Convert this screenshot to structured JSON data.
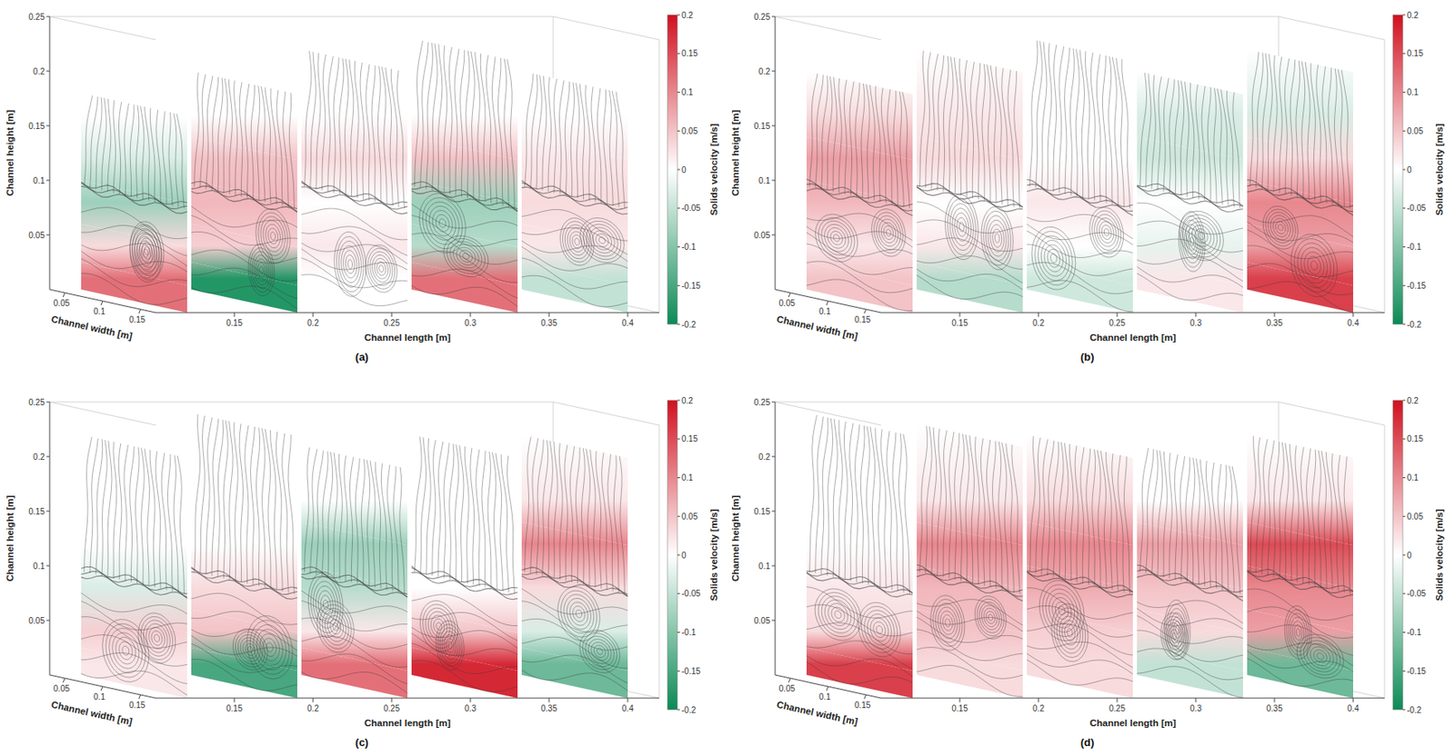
{
  "chart_data": [
    {
      "type": "slices",
      "title": "(a)",
      "height_label": "Channel height [m]",
      "width_label": "Channel width [m]",
      "length_label": "Channel length [m]",
      "height_lim": [
        0,
        0.25
      ],
      "height_ticks": [
        0.05,
        0.1,
        0.15,
        0.2,
        0.25
      ],
      "width_lim": [
        0.03,
        0.17
      ],
      "width_ticks": [
        0.05,
        0.1,
        0.15
      ],
      "length_lim": [
        0.1,
        0.42
      ],
      "length_ticks": [
        0.15,
        0.2,
        0.25,
        0.3,
        0.35,
        0.4
      ],
      "heights": [
        0.01,
        0.04,
        0.08,
        0.12,
        0.16
      ],
      "slices": [
        {
          "length": 0.12,
          "top": 0.18,
          "velocity": [
            0.12,
            0.03,
            -0.08,
            -0.03,
            0
          ]
        },
        {
          "length": 0.19,
          "top": 0.2,
          "velocity": [
            -0.18,
            0.04,
            0.06,
            0.05,
            0
          ]
        },
        {
          "length": 0.26,
          "top": 0.22,
          "velocity": [
            0,
            0.02,
            0,
            0.03,
            0
          ]
        },
        {
          "length": 0.33,
          "top": 0.23,
          "velocity": [
            0.12,
            -0.06,
            -0.08,
            0.05,
            0
          ]
        },
        {
          "length": 0.4,
          "top": 0.2,
          "velocity": [
            -0.05,
            0.02,
            0.03,
            0.02,
            0
          ]
        }
      ],
      "colorbar": {
        "label": "Solids velocity [m/s]",
        "lim": [
          -0.2,
          0.2
        ],
        "ticks": [
          0.2,
          0.15,
          0.1,
          0.05,
          0,
          -0.05,
          -0.1,
          -0.15,
          -0.2
        ],
        "colors": [
          "#0b8a55",
          "#ffffff",
          "#d0101e"
        ]
      }
    },
    {
      "type": "slices",
      "title": "(b)",
      "height_label": "Channel height [m]",
      "width_label": "Channel width [m]",
      "length_label": "Channel length [m]",
      "height_lim": [
        0,
        0.25
      ],
      "height_ticks": [
        0.05,
        0.1,
        0.15,
        0.2,
        0.25
      ],
      "width_lim": [
        0.03,
        0.17
      ],
      "width_ticks": [
        0.05,
        0.1,
        0.15
      ],
      "length_lim": [
        0.1,
        0.42
      ],
      "length_ticks": [
        0.15,
        0.2,
        0.25,
        0.3,
        0.35,
        0.4
      ],
      "heights": [
        0.01,
        0.04,
        0.08,
        0.12,
        0.16
      ],
      "slices": [
        {
          "length": 0.12,
          "top": 0.2,
          "velocity": [
            0.05,
            0.02,
            0.06,
            0.08,
            0.03
          ]
        },
        {
          "length": 0.19,
          "top": 0.22,
          "velocity": [
            -0.06,
            0.02,
            0,
            0.03,
            0.02
          ]
        },
        {
          "length": 0.26,
          "top": 0.23,
          "velocity": [
            -0.04,
            0,
            0.02,
            0,
            0
          ]
        },
        {
          "length": 0.33,
          "top": 0.2,
          "velocity": [
            0.02,
            -0.02,
            0,
            -0.04,
            -0.03
          ]
        },
        {
          "length": 0.4,
          "top": 0.22,
          "velocity": [
            0.16,
            0.08,
            0.1,
            0.03,
            -0.03
          ]
        }
      ],
      "colorbar": {
        "label": "Solids velocity [m/s]",
        "lim": [
          -0.2,
          0.2
        ],
        "ticks": [
          0.2,
          0.15,
          0.1,
          0.05,
          0,
          -0.05,
          -0.1,
          -0.15,
          -0.2
        ],
        "colors": [
          "#0b8a55",
          "#ffffff",
          "#d0101e"
        ]
      }
    },
    {
      "type": "slices",
      "title": "(c)",
      "height_label": "Channel height [m]",
      "width_label": "Channel width [m]",
      "length_label": "Channel length [m]",
      "height_lim": [
        0,
        0.25
      ],
      "height_ticks": [
        0.05,
        0.1,
        0.15,
        0.2,
        0.25
      ],
      "width_lim": [
        0.03,
        0.17
      ],
      "width_ticks": [
        0.05,
        0.1,
        0.15
      ],
      "length_lim": [
        0.1,
        0.42
      ],
      "length_ticks": [
        0.15,
        0.2,
        0.25,
        0.3,
        0.35,
        0.4
      ],
      "heights": [
        0.01,
        0.04,
        0.08,
        0.12,
        0.16
      ],
      "slices": [
        {
          "length": 0.12,
          "top": 0.22,
          "velocity": [
            0.02,
            0.04,
            -0.03,
            0,
            0
          ]
        },
        {
          "length": 0.19,
          "top": 0.24,
          "velocity": [
            -0.15,
            0.05,
            0.03,
            0,
            0
          ]
        },
        {
          "length": 0.26,
          "top": 0.21,
          "velocity": [
            0.12,
            0.02,
            -0.06,
            -0.08,
            0
          ]
        },
        {
          "length": 0.33,
          "top": 0.22,
          "velocity": [
            0.18,
            0.05,
            0,
            0,
            0
          ]
        },
        {
          "length": 0.4,
          "top": 0.22,
          "velocity": [
            -0.12,
            -0.03,
            0.03,
            0.1,
            0.02
          ]
        }
      ],
      "colorbar": {
        "label": "Solids velocity [m/s]",
        "lim": [
          -0.2,
          0.2
        ],
        "ticks": [
          0.2,
          0.15,
          0.1,
          0.05,
          0,
          -0.05,
          -0.1,
          -0.15,
          -0.2
        ],
        "colors": [
          "#0b8a55",
          "#ffffff",
          "#d0101e"
        ]
      }
    },
    {
      "type": "slices",
      "title": "(d)",
      "height_label": "Channel height [m]",
      "width_label": "Channel width [m]",
      "length_label": "Channel length [m]",
      "height_lim": [
        0,
        0.25
      ],
      "height_ticks": [
        0.05,
        0.1,
        0.15,
        0.2,
        0.25
      ],
      "width_lim": [
        0.03,
        0.17
      ],
      "width_ticks": [
        0.05,
        0.1,
        0.15
      ],
      "length_lim": [
        0.1,
        0.42
      ],
      "length_ticks": [
        0.15,
        0.2,
        0.25,
        0.3,
        0.35,
        0.4
      ],
      "heights": [
        0.01,
        0.04,
        0.08,
        0.12,
        0.16
      ],
      "slices": [
        {
          "length": 0.12,
          "top": 0.24,
          "velocity": [
            0.16,
            0.03,
            0.02,
            0,
            0
          ]
        },
        {
          "length": 0.19,
          "top": 0.23,
          "velocity": [
            0.03,
            0.05,
            0.06,
            0.1,
            0.02
          ]
        },
        {
          "length": 0.26,
          "top": 0.22,
          "velocity": [
            0.03,
            0.04,
            0.07,
            0.1,
            0.03
          ]
        },
        {
          "length": 0.33,
          "top": 0.21,
          "velocity": [
            -0.05,
            0.03,
            0.05,
            0.08,
            0
          ]
        },
        {
          "length": 0.4,
          "top": 0.22,
          "velocity": [
            -0.12,
            0.08,
            0.1,
            0.15,
            0.02
          ]
        }
      ],
      "colorbar": {
        "label": "Solids velocity [m/s]",
        "lim": [
          -0.2,
          0.2
        ],
        "ticks": [
          0.2,
          0.15,
          0.1,
          0.05,
          0,
          -0.05,
          -0.1,
          -0.15,
          -0.2
        ],
        "colors": [
          "#0b8a55",
          "#ffffff",
          "#d0101e"
        ]
      }
    }
  ]
}
